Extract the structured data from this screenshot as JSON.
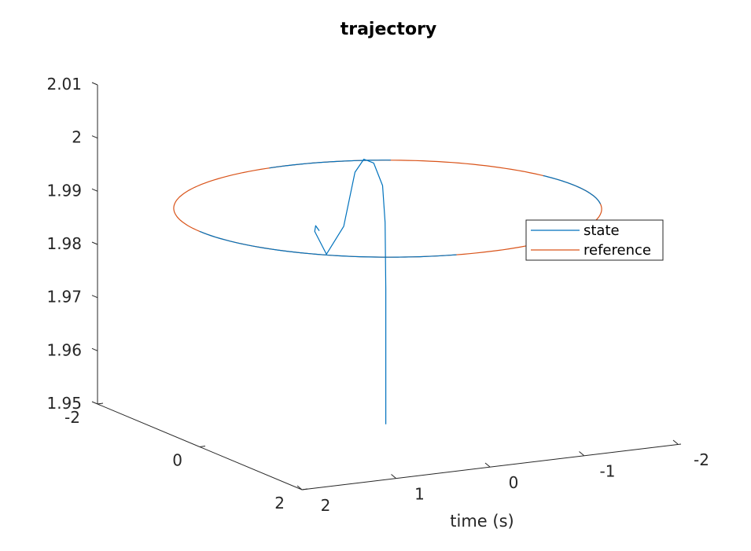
{
  "chart_data": {
    "type": "line",
    "projection": "3d",
    "title": "trajectory",
    "xlabel": "time (s)",
    "ylabel": "",
    "zlabel": "",
    "xlim": [
      -2,
      2
    ],
    "ylim": [
      -2,
      2
    ],
    "zlim": [
      1.95,
      2.01
    ],
    "x_ticks": [
      "2",
      "1",
      "0",
      "-1",
      "-2"
    ],
    "x_tick_values": [
      2,
      1,
      0,
      -1,
      -2
    ],
    "y_ticks": [
      "-2",
      "0",
      "2"
    ],
    "y_tick_values": [
      -2,
      0,
      2
    ],
    "z_ticks": [
      "2.01",
      "2",
      "1.99",
      "1.98",
      "1.97",
      "1.96",
      "1.95"
    ],
    "z_tick_values": [
      2.01,
      2.0,
      1.99,
      1.98,
      1.97,
      1.96,
      1.95
    ],
    "grid": false,
    "legend_position": "right",
    "series": [
      {
        "name": "state",
        "color": "#0072BD",
        "description": "starts at z=1.95, rises to the circle, overshoots, oscillates and settles onto the reference circle",
        "points": [
          [
            0.02,
            0.0,
            1.95
          ],
          [
            0.02,
            0.0,
            1.9755
          ],
          [
            0.03,
            0.005,
            1.988
          ],
          [
            0.06,
            0.01,
            1.995
          ],
          [
            0.16,
            0.02,
            1.9995
          ],
          [
            0.27,
            0.03,
            2.0005
          ],
          [
            0.37,
            0.04,
            1.9983
          ],
          [
            0.5,
            0.06,
            1.9885
          ],
          [
            0.69,
            0.07,
            1.9837
          ],
          [
            0.82,
            0.08,
            1.9883
          ],
          [
            0.93,
            0.3,
            1.9905
          ],
          [
            1.0,
            0.5,
            1.9905
          ]
        ]
      },
      {
        "name": "reference",
        "color": "#D95319",
        "description": "circle of radius 2 at height z=1.9905"
      }
    ],
    "reference_circle": {
      "radius": 2,
      "z": 1.9905
    }
  }
}
